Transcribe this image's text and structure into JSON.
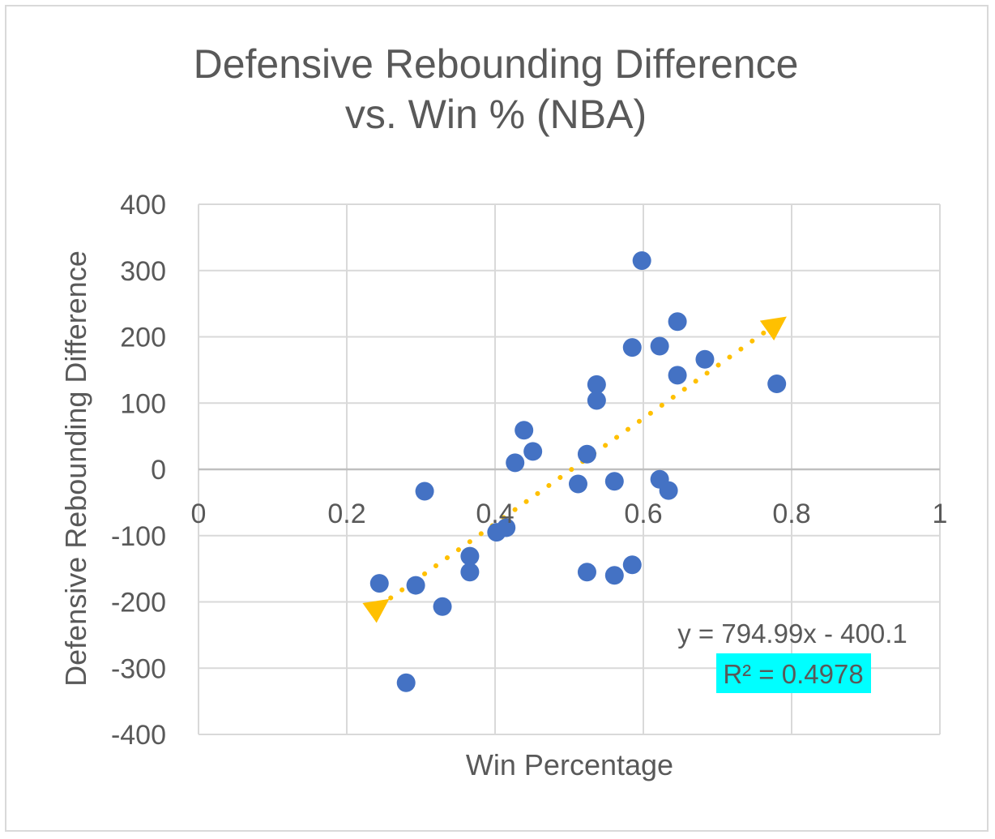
{
  "chart_data": {
    "type": "scatter",
    "title_lines": [
      "Defensive Rebounding Difference",
      "vs. Win % (NBA)"
    ],
    "xlabel": "Win Percentage",
    "ylabel": "Defensive Rebounding  Difference",
    "xlim": [
      0,
      1
    ],
    "ylim": [
      -400,
      400
    ],
    "x_ticks": [
      "0",
      "0.2",
      "0.4",
      "0.6",
      "0.8",
      "1"
    ],
    "x_tick_values": [
      0,
      0.2,
      0.4,
      0.6,
      0.8,
      1
    ],
    "y_ticks": [
      "400",
      "300",
      "200",
      "100",
      "0",
      "-100",
      "-200",
      "-300",
      "-400"
    ],
    "y_tick_values": [
      400,
      300,
      200,
      100,
      0,
      -100,
      -200,
      -300,
      -400
    ],
    "grid": true,
    "point_color": "#4472c4",
    "trend_color": "#ffc000",
    "r2_highlight_color": "#00ffff",
    "points": [
      {
        "x": 0.244,
        "y": -172
      },
      {
        "x": 0.28,
        "y": -322
      },
      {
        "x": 0.293,
        "y": -175
      },
      {
        "x": 0.305,
        "y": -33
      },
      {
        "x": 0.329,
        "y": -207
      },
      {
        "x": 0.366,
        "y": -131
      },
      {
        "x": 0.366,
        "y": -155
      },
      {
        "x": 0.402,
        "y": -95
      },
      {
        "x": 0.415,
        "y": -88
      },
      {
        "x": 0.427,
        "y": 10
      },
      {
        "x": 0.439,
        "y": 59
      },
      {
        "x": 0.451,
        "y": 27
      },
      {
        "x": 0.512,
        "y": -22
      },
      {
        "x": 0.524,
        "y": 23
      },
      {
        "x": 0.524,
        "y": -155
      },
      {
        "x": 0.537,
        "y": 128
      },
      {
        "x": 0.537,
        "y": 104
      },
      {
        "x": 0.561,
        "y": -18
      },
      {
        "x": 0.561,
        "y": -160
      },
      {
        "x": 0.585,
        "y": 184
      },
      {
        "x": 0.585,
        "y": -144
      },
      {
        "x": 0.598,
        "y": 315
      },
      {
        "x": 0.622,
        "y": 186
      },
      {
        "x": 0.622,
        "y": -15
      },
      {
        "x": 0.634,
        "y": -32
      },
      {
        "x": 0.646,
        "y": 223
      },
      {
        "x": 0.646,
        "y": 142
      },
      {
        "x": 0.683,
        "y": 166
      },
      {
        "x": 0.78,
        "y": 129
      }
    ],
    "trendline": {
      "slope": 794.99,
      "intercept": -400.1,
      "x_start": 0.244,
      "x_end": 0.78
    },
    "equation_label": "y = 794.99x - 400.1",
    "r2_label": "R² = 0.4978"
  }
}
